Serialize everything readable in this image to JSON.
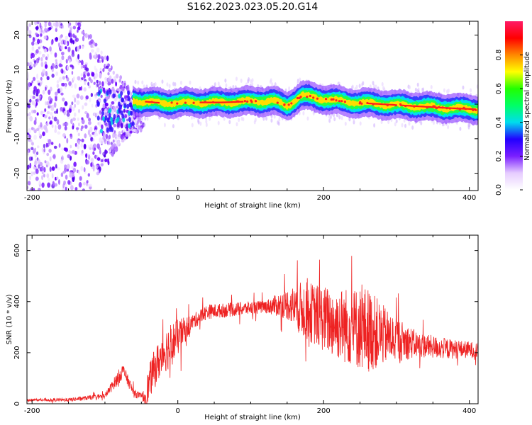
{
  "title": "S162.2023.023.05.20.G14",
  "colors": {
    "frame": "#000000",
    "snr_line": "#ee2222",
    "background": "#ffffff"
  },
  "chart_data": [
    {
      "type": "heatmap",
      "name": "spectrogram",
      "xlabel": "Height of straight line (km)",
      "ylabel": "Frequency (Hz)",
      "xlim": [
        -207,
        412
      ],
      "ylim": [
        -25,
        24
      ],
      "x_ticks": [
        -200,
        0,
        200,
        400
      ],
      "y_ticks": [
        -20,
        -10,
        0,
        10,
        20
      ],
      "colorbar": {
        "label": "Normalized spectral amplitude",
        "range": [
          0,
          1
        ],
        "ticks": [
          "0.0",
          "0.2",
          "0.4",
          "0.6",
          "0.8"
        ],
        "colors": [
          "#ffffff",
          "#e6ccff",
          "#7a1fff",
          "#2200ff",
          "#00ddee",
          "#00ff66",
          "#22ff00",
          "#ffff00",
          "#ff8800",
          "#ff0000",
          "#ff1a66"
        ]
      },
      "center_frequency_trace": [
        {
          "x": -60,
          "y": 1.0
        },
        {
          "x": -20,
          "y": 0.3
        },
        {
          "x": 20,
          "y": 0.5
        },
        {
          "x": 60,
          "y": 0.5
        },
        {
          "x": 100,
          "y": 0.8
        },
        {
          "x": 130,
          "y": 1.0
        },
        {
          "x": 150,
          "y": -0.5
        },
        {
          "x": 170,
          "y": 2.5
        },
        {
          "x": 200,
          "y": 1.5
        },
        {
          "x": 240,
          "y": 0.5
        },
        {
          "x": 280,
          "y": 0.0
        },
        {
          "x": 320,
          "y": -0.5
        },
        {
          "x": 360,
          "y": -1.0
        },
        {
          "x": 410,
          "y": -1.5
        }
      ]
    },
    {
      "type": "line",
      "name": "snr",
      "xlabel": "Height of straight line (km)",
      "ylabel": "SNR (10 * v/v)",
      "xlim": [
        -207,
        412
      ],
      "ylim": [
        0,
        660
      ],
      "x_ticks": [
        -200,
        0,
        200,
        400
      ],
      "y_ticks": [
        0,
        200,
        400,
        600
      ],
      "envelope": [
        {
          "x": -207,
          "y": 15
        },
        {
          "x": -150,
          "y": 15
        },
        {
          "x": -100,
          "y": 30
        },
        {
          "x": -85,
          "y": 90
        },
        {
          "x": -75,
          "y": 130
        },
        {
          "x": -60,
          "y": 40
        },
        {
          "x": -45,
          "y": 25
        },
        {
          "x": -35,
          "y": 120
        },
        {
          "x": -20,
          "y": 200
        },
        {
          "x": 0,
          "y": 260
        },
        {
          "x": 20,
          "y": 320
        },
        {
          "x": 40,
          "y": 360
        },
        {
          "x": 80,
          "y": 370
        },
        {
          "x": 120,
          "y": 380
        },
        {
          "x": 150,
          "y": 390
        },
        {
          "x": 180,
          "y": 360
        },
        {
          "x": 210,
          "y": 320
        },
        {
          "x": 240,
          "y": 300
        },
        {
          "x": 260,
          "y": 290
        },
        {
          "x": 290,
          "y": 260
        },
        {
          "x": 330,
          "y": 230
        },
        {
          "x": 370,
          "y": 215
        },
        {
          "x": 412,
          "y": 210
        }
      ],
      "noise_amplitude": [
        {
          "x": -207,
          "y": 4
        },
        {
          "x": -100,
          "y": 10
        },
        {
          "x": -80,
          "y": 30
        },
        {
          "x": -50,
          "y": 10
        },
        {
          "x": -40,
          "y": 70
        },
        {
          "x": -10,
          "y": 90
        },
        {
          "x": 20,
          "y": 30
        },
        {
          "x": 120,
          "y": 25
        },
        {
          "x": 150,
          "y": 60
        },
        {
          "x": 170,
          "y": 110
        },
        {
          "x": 230,
          "y": 150
        },
        {
          "x": 260,
          "y": 170
        },
        {
          "x": 290,
          "y": 100
        },
        {
          "x": 330,
          "y": 50
        },
        {
          "x": 412,
          "y": 30
        }
      ]
    }
  ]
}
